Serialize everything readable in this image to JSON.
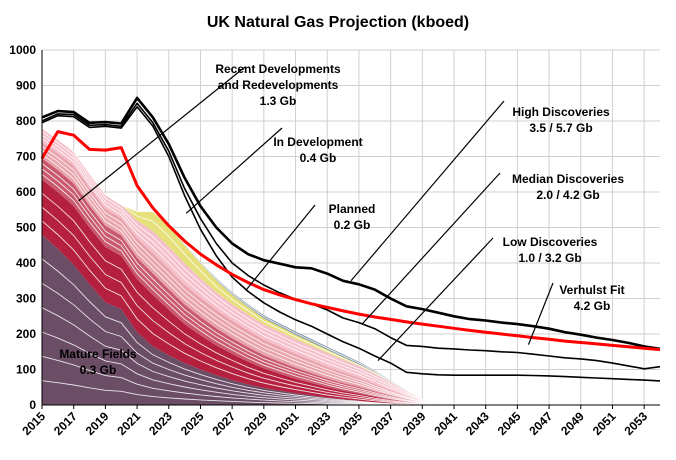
{
  "chart_data": {
    "type": "area",
    "title": "UK Natural Gas Projection (kboed)",
    "xlabel": "",
    "ylabel": "",
    "xlim": [
      2015,
      2054
    ],
    "ylim": [
      0,
      1000
    ],
    "y_ticks": [
      "0",
      "100",
      "200",
      "300",
      "400",
      "500",
      "600",
      "700",
      "800",
      "900",
      "1000"
    ],
    "x_ticks": [
      "2015",
      "2017",
      "2019",
      "2021",
      "2023",
      "2025",
      "2027",
      "2029",
      "2031",
      "2033",
      "2035",
      "2037",
      "2039",
      "2041",
      "2043",
      "2045",
      "2047",
      "2049",
      "2051",
      "2053"
    ],
    "grid": true,
    "colors": {
      "mature": "#6b4d66",
      "mature_red": "#b5203f",
      "mid": "#c95a6e",
      "light": "#e8a3ad",
      "pink": "#f5c0cc",
      "yellow": "#e6e07a",
      "blue": "#7f95a8",
      "fit": "#ff0000",
      "disc": "#000000"
    },
    "stacked_years": [
      2015,
      2016,
      2017,
      2018,
      2019,
      2020,
      2021,
      2022,
      2023,
      2024,
      2025,
      2026,
      2027,
      2028,
      2029,
      2030,
      2031,
      2032,
      2033,
      2034,
      2035,
      2036,
      2037,
      2038,
      2039,
      2040
    ],
    "stacked_series": [
      {
        "name": "Mature Fields 0.3 Gb",
        "values": [
          480,
          440,
          395,
          340,
          290,
          270,
          205,
          165,
          140,
          118,
          100,
          84,
          70,
          58,
          48,
          40,
          33,
          27,
          21,
          16,
          12,
          8,
          5,
          3,
          1,
          0
        ]
      },
      {
        "values": [
          155,
          160,
          165,
          160,
          155,
          150,
          150,
          145,
          128,
          110,
          96,
          84,
          74,
          64,
          55,
          48,
          41,
          35,
          29,
          24,
          20,
          15,
          10,
          6,
          3,
          0
        ]
      },
      {
        "values": [
          60,
          62,
          64,
          62,
          60,
          58,
          60,
          60,
          58,
          55,
          52,
          48,
          44,
          41,
          37,
          34,
          31,
          28,
          25,
          22,
          19,
          15,
          11,
          7,
          3,
          0
        ]
      },
      {
        "values": [
          45,
          47,
          50,
          50,
          48,
          48,
          55,
          58,
          58,
          56,
          54,
          52,
          49,
          47,
          44,
          42,
          39,
          36,
          33,
          30,
          26,
          21,
          15,
          9,
          4,
          0
        ]
      },
      {
        "name": "Recent Developments and Redevelopments 1.3 Gb",
        "values": [
          40,
          40,
          40,
          40,
          40,
          38,
          50,
          62,
          62,
          60,
          55,
          50,
          47,
          45,
          43,
          42,
          41,
          40,
          39,
          36,
          33,
          29,
          23,
          14,
          6,
          0
        ]
      },
      {
        "name": "In Development 0.4 Gb",
        "values": [
          0,
          0,
          0,
          0,
          0,
          0,
          25,
          55,
          58,
          52,
          42,
          33,
          26,
          21,
          17,
          15,
          13,
          11,
          9,
          7,
          5,
          4,
          2,
          1,
          0,
          0
        ]
      },
      {
        "name": "Planned 0.2 Gb",
        "values": [
          0,
          0,
          0,
          0,
          0,
          0,
          0,
          0,
          2,
          3,
          4,
          6,
          7,
          8,
          9,
          9,
          9,
          9,
          8,
          8,
          7,
          5,
          3,
          2,
          1,
          0
        ]
      }
    ],
    "lines": [
      {
        "name": "High Discoveries 3.5 / 5.7 Gb",
        "x": [
          2015,
          2016,
          2017,
          2018,
          2019,
          2020,
          2021,
          2022,
          2023,
          2024,
          2025,
          2026,
          2027,
          2028,
          2029,
          2030,
          2031,
          2032,
          2033,
          2034,
          2035,
          2036,
          2037,
          2038,
          2039,
          2040,
          2041,
          2042,
          2043,
          2044,
          2045,
          2046,
          2047,
          2048,
          2049,
          2050,
          2051,
          2052,
          2053,
          2054
        ],
        "values": [
          810,
          828,
          825,
          795,
          797,
          793,
          865,
          810,
          735,
          640,
          560,
          500,
          455,
          425,
          408,
          398,
          388,
          385,
          370,
          350,
          340,
          325,
          300,
          278,
          270,
          260,
          250,
          242,
          238,
          232,
          228,
          222,
          215,
          205,
          198,
          190,
          183,
          175,
          165,
          158
        ]
      },
      {
        "name": "Median Discoveries 2.0 / 4.2 Gb",
        "x": [
          2015,
          2016,
          2017,
          2018,
          2019,
          2020,
          2021,
          2022,
          2023,
          2024,
          2025,
          2026,
          2027,
          2028,
          2029,
          2030,
          2031,
          2032,
          2033,
          2034,
          2035,
          2036,
          2037,
          2038,
          2039,
          2040,
          2041,
          2042,
          2043,
          2044,
          2045,
          2046,
          2047,
          2048,
          2049,
          2050,
          2051,
          2052,
          2053,
          2054
        ],
        "values": [
          800,
          820,
          818,
          788,
          790,
          785,
          850,
          795,
          715,
          610,
          525,
          455,
          400,
          365,
          338,
          316,
          298,
          285,
          268,
          245,
          232,
          215,
          190,
          168,
          165,
          160,
          158,
          155,
          153,
          150,
          148,
          143,
          138,
          133,
          130,
          125,
          118,
          110,
          102,
          108
        ]
      },
      {
        "name": "Low Discoveries 1.0 / 3.2 Gb",
        "x": [
          2015,
          2016,
          2017,
          2018,
          2019,
          2020,
          2021,
          2022,
          2023,
          2024,
          2025,
          2026,
          2027,
          2028,
          2029,
          2030,
          2031,
          2032,
          2033,
          2034,
          2035,
          2036,
          2037,
          2038,
          2039,
          2040,
          2041,
          2042,
          2043,
          2044,
          2045,
          2046,
          2047,
          2048,
          2049,
          2050,
          2051,
          2052,
          2053,
          2054
        ],
        "values": [
          795,
          815,
          812,
          782,
          785,
          780,
          840,
          785,
          700,
          590,
          495,
          420,
          360,
          320,
          288,
          262,
          240,
          222,
          200,
          178,
          160,
          138,
          118,
          92,
          88,
          85,
          84,
          84,
          84,
          84,
          84,
          83,
          82,
          80,
          78,
          76,
          74,
          72,
          70,
          68
        ]
      },
      {
        "name": "Verhulst Fit 4.2 Gb",
        "x": [
          2015,
          2016,
          2017,
          2018,
          2019,
          2020,
          2021,
          2022,
          2023,
          2024,
          2025,
          2026,
          2027,
          2028,
          2029,
          2030,
          2031,
          2032,
          2033,
          2034,
          2035,
          2036,
          2037,
          2038,
          2039,
          2040,
          2041,
          2042,
          2043,
          2044,
          2045,
          2046,
          2047,
          2048,
          2049,
          2050,
          2051,
          2052,
          2053,
          2054
        ],
        "values": [
          695,
          770,
          760,
          720,
          718,
          725,
          618,
          555,
          505,
          462,
          425,
          395,
          368,
          345,
          325,
          310,
          297,
          285,
          275,
          265,
          256,
          248,
          241,
          234,
          228,
          222,
          216,
          210,
          205,
          200,
          195,
          190,
          185,
          180,
          176,
          172,
          168,
          164,
          160,
          156
        ]
      }
    ],
    "annotations": [
      {
        "lines": [
          "Recent Developments",
          "and Redevelopments",
          "1.3 Gb"
        ],
        "point": [
          2017.3,
          575
        ]
      },
      {
        "lines": [
          "In Development",
          "0.4 Gb"
        ],
        "point": [
          2024.1,
          540
        ]
      },
      {
        "lines": [
          "Planned",
          "0.2 Gb"
        ],
        "point": [
          2027.9,
          325
        ]
      },
      {
        "lines": [
          "High Discoveries",
          "3.5 / 5.7 Gb"
        ],
        "point": [
          2034.5,
          350
        ]
      },
      {
        "lines": [
          "Median Discoveries",
          "2.0 / 4.2 Gb"
        ],
        "point": [
          2035.2,
          228
        ]
      },
      {
        "lines": [
          "Low Discoveries",
          "1.0 / 3.2 Gb"
        ],
        "point": [
          2036.2,
          125
        ]
      },
      {
        "lines": [
          "Verhulst Fit",
          "4.2 Gb"
        ],
        "point": [
          2045.7,
          170
        ]
      },
      {
        "lines": [
          "Mature Fields",
          "0.3 Gb"
        ],
        "point": null
      }
    ]
  }
}
